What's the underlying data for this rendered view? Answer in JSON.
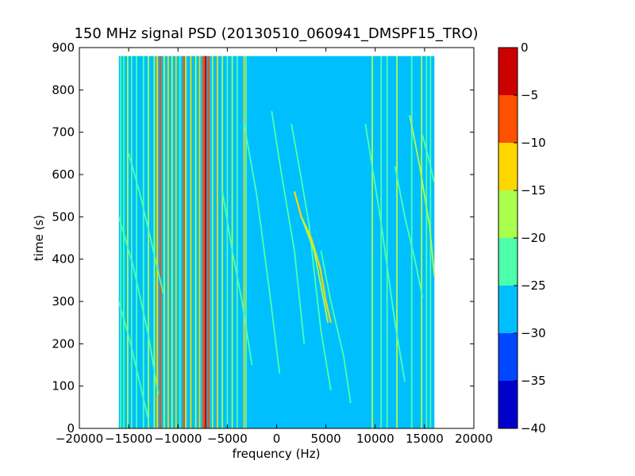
{
  "chart_data": {
    "type": "heatmap",
    "title": "150 MHz signal PSD (20130510_060941_DMSPF15_TRO)",
    "xlabel": "frequency (Hz)",
    "ylabel": "time (s)",
    "xlim": [
      -20000,
      20000
    ],
    "ylim": [
      0,
      900
    ],
    "x_ticks": [
      -20000,
      -15000,
      -10000,
      -5000,
      0,
      5000,
      10000,
      15000,
      20000
    ],
    "y_ticks": [
      0,
      100,
      200,
      300,
      400,
      500,
      600,
      700,
      800,
      900
    ],
    "data_extent": {
      "x": [
        -16000,
        16000
      ],
      "y": [
        0,
        880
      ]
    },
    "background_level": -27.5,
    "colorbar": {
      "min": -40,
      "max": 0,
      "ticks": [
        0,
        -5,
        -10,
        -15,
        -20,
        -25,
        -30,
        -35,
        -40
      ],
      "levels": [
        {
          "range": [
            -40,
            -35
          ],
          "color": "#0000cd"
        },
        {
          "range": [
            -35,
            -30
          ],
          "color": "#0047ff"
        },
        {
          "range": [
            -30,
            -25
          ],
          "color": "#00bfff"
        },
        {
          "range": [
            -25,
            -20
          ],
          "color": "#4dffaa"
        },
        {
          "range": [
            -20,
            -15
          ],
          "color": "#aaff4d"
        },
        {
          "range": [
            -15,
            -10
          ],
          "color": "#ffd700"
        },
        {
          "range": [
            -10,
            -5
          ],
          "color": "#ff5000"
        },
        {
          "range": [
            -5,
            0
          ],
          "color": "#cd0000"
        }
      ]
    },
    "vertical_lines": [
      {
        "freq": -15800,
        "t0": 0,
        "t1": 880,
        "level": -22
      },
      {
        "freq": -15500,
        "t0": 0,
        "t1": 880,
        "level": -22
      },
      {
        "freq": -15100,
        "t0": 0,
        "t1": 880,
        "level": -17
      },
      {
        "freq": -14700,
        "t0": 0,
        "t1": 880,
        "level": -22
      },
      {
        "freq": -14200,
        "t0": 0,
        "t1": 880,
        "level": -22
      },
      {
        "freq": -13500,
        "t0": 0,
        "t1": 880,
        "level": -22
      },
      {
        "freq": -13000,
        "t0": 0,
        "t1": 880,
        "level": -17
      },
      {
        "freq": -12400,
        "t0": 0,
        "t1": 880,
        "level": -17
      },
      {
        "freq": -12100,
        "t0": 0,
        "t1": 880,
        "level": -12
      },
      {
        "freq": -11800,
        "t0": 0,
        "t1": 880,
        "level": -7
      },
      {
        "freq": -11400,
        "t0": 0,
        "t1": 880,
        "level": -17
      },
      {
        "freq": -11000,
        "t0": 0,
        "t1": 880,
        "level": -12
      },
      {
        "freq": -10600,
        "t0": 0,
        "t1": 880,
        "level": -17
      },
      {
        "freq": -10200,
        "t0": 0,
        "t1": 880,
        "level": -12
      },
      {
        "freq": -9800,
        "t0": 0,
        "t1": 880,
        "level": -22
      },
      {
        "freq": -9400,
        "t0": 0,
        "t1": 880,
        "level": -7
      },
      {
        "freq": -9200,
        "t0": 0,
        "t1": 880,
        "level": -17
      },
      {
        "freq": -8700,
        "t0": 0,
        "t1": 880,
        "level": -12
      },
      {
        "freq": -8200,
        "t0": 0,
        "t1": 880,
        "level": -17
      },
      {
        "freq": -7800,
        "t0": 0,
        "t1": 880,
        "level": -12
      },
      {
        "freq": -7400,
        "t0": 0,
        "t1": 880,
        "level": -7
      },
      {
        "freq": -7200,
        "t0": 0,
        "t1": 880,
        "level": -2
      },
      {
        "freq": -6900,
        "t0": 0,
        "t1": 880,
        "level": -7
      },
      {
        "freq": -6500,
        "t0": 0,
        "t1": 880,
        "level": -17
      },
      {
        "freq": -6000,
        "t0": 0,
        "t1": 880,
        "level": -12
      },
      {
        "freq": -5500,
        "t0": 0,
        "t1": 880,
        "level": -17
      },
      {
        "freq": -5000,
        "t0": 0,
        "t1": 880,
        "level": -22
      },
      {
        "freq": -4500,
        "t0": 0,
        "t1": 880,
        "level": -17
      },
      {
        "freq": -4000,
        "t0": 0,
        "t1": 880,
        "level": -22
      },
      {
        "freq": -3300,
        "t0": 0,
        "t1": 880,
        "level": -12
      },
      {
        "freq": -3100,
        "t0": 0,
        "t1": 880,
        "level": -22
      },
      {
        "freq": 9700,
        "t0": 0,
        "t1": 880,
        "level": -17
      },
      {
        "freq": 10600,
        "t0": 0,
        "t1": 880,
        "level": -22
      },
      {
        "freq": 11200,
        "t0": 0,
        "t1": 880,
        "level": -22
      },
      {
        "freq": 12200,
        "t0": 0,
        "t1": 880,
        "level": -17
      },
      {
        "freq": 13700,
        "t0": 0,
        "t1": 880,
        "level": -22
      },
      {
        "freq": 14700,
        "t0": 0,
        "t1": 880,
        "level": -17
      },
      {
        "freq": 15200,
        "t0": 0,
        "t1": 880,
        "level": -22
      },
      {
        "freq": 15600,
        "t0": 0,
        "t1": 880,
        "level": -22
      }
    ],
    "curves": [
      {
        "level": -22,
        "points": [
          [
            -16000,
            500
          ],
          [
            -14500,
            380
          ],
          [
            -13000,
            220
          ],
          [
            -12000,
            80
          ]
        ]
      },
      {
        "level": -22,
        "points": [
          [
            -16000,
            300
          ],
          [
            -14800,
            200
          ],
          [
            -13800,
            100
          ],
          [
            -13000,
            20
          ]
        ]
      },
      {
        "level": -22,
        "points": [
          [
            -15000,
            650
          ],
          [
            -13800,
            550
          ],
          [
            -12500,
            420
          ],
          [
            -11500,
            320
          ]
        ]
      },
      {
        "level": -22,
        "points": [
          [
            -5500,
            560
          ],
          [
            -4500,
            420
          ],
          [
            -3500,
            300
          ],
          [
            -2500,
            150
          ]
        ]
      },
      {
        "level": -22,
        "points": [
          [
            -3300,
            720
          ],
          [
            -2000,
            550
          ],
          [
            -700,
            320
          ],
          [
            300,
            130
          ]
        ]
      },
      {
        "level": -22,
        "points": [
          [
            -500,
            750
          ],
          [
            500,
            600
          ],
          [
            1800,
            420
          ],
          [
            2800,
            200
          ]
        ]
      },
      {
        "level": -22,
        "points": [
          [
            1500,
            720
          ],
          [
            2500,
            590
          ],
          [
            3300,
            480
          ],
          [
            3900,
            350
          ],
          [
            4500,
            230
          ],
          [
            5500,
            90
          ]
        ]
      },
      {
        "level": -12,
        "points": [
          [
            1800,
            560
          ],
          [
            2500,
            500
          ],
          [
            3500,
            450
          ],
          [
            4400,
            380
          ],
          [
            5000,
            300
          ],
          [
            5500,
            250
          ]
        ]
      },
      {
        "level": -17,
        "points": [
          [
            2500,
            500
          ],
          [
            3800,
            420
          ],
          [
            4800,
            300
          ],
          [
            5200,
            250
          ]
        ]
      },
      {
        "level": -22,
        "points": [
          [
            4500,
            420
          ],
          [
            5500,
            300
          ],
          [
            6800,
            170
          ],
          [
            7500,
            60
          ]
        ]
      },
      {
        "level": -22,
        "points": [
          [
            9000,
            720
          ],
          [
            10500,
            500
          ],
          [
            12000,
            250
          ],
          [
            13000,
            110
          ]
        ]
      },
      {
        "level": -22,
        "points": [
          [
            12000,
            620
          ],
          [
            13000,
            500
          ],
          [
            14000,
            400
          ],
          [
            14800,
            310
          ]
        ]
      },
      {
        "level": -17,
        "points": [
          [
            13500,
            740
          ],
          [
            14500,
            620
          ],
          [
            15500,
            480
          ],
          [
            16000,
            360
          ]
        ]
      },
      {
        "level": -22,
        "points": [
          [
            14700,
            700
          ],
          [
            15400,
            640
          ],
          [
            16000,
            580
          ]
        ]
      }
    ]
  }
}
